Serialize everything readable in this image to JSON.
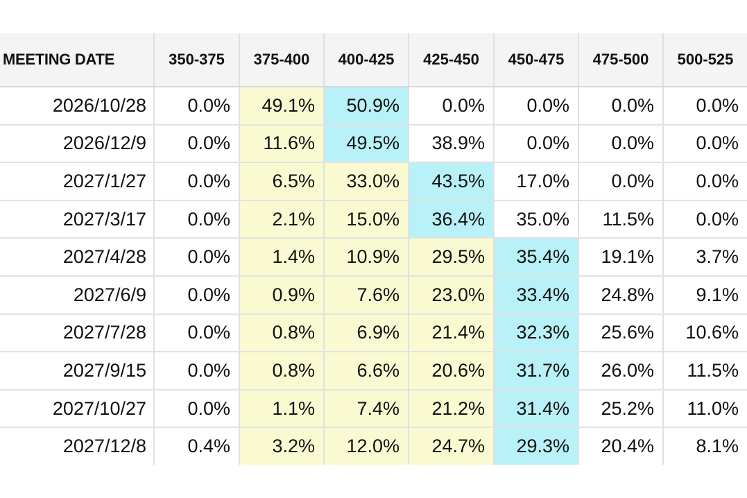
{
  "chart_data": {
    "type": "table",
    "title": "",
    "columns": [
      "MEETING DATE",
      "350-375",
      "375-400",
      "400-425",
      "425-450",
      "450-475",
      "475-500",
      "500-525"
    ],
    "rows": [
      [
        "2026/10/28",
        "0.0%",
        "49.1%",
        "50.9%",
        "0.0%",
        "0.0%",
        "0.0%",
        "0.0%"
      ],
      [
        "2026/12/9",
        "0.0%",
        "11.6%",
        "49.5%",
        "38.9%",
        "0.0%",
        "0.0%",
        "0.0%"
      ],
      [
        "2027/1/27",
        "0.0%",
        "6.5%",
        "33.0%",
        "43.5%",
        "17.0%",
        "0.0%",
        "0.0%"
      ],
      [
        "2027/3/17",
        "0.0%",
        "2.1%",
        "15.0%",
        "36.4%",
        "35.0%",
        "11.5%",
        "0.0%"
      ],
      [
        "2027/4/28",
        "0.0%",
        "1.4%",
        "10.9%",
        "29.5%",
        "35.4%",
        "19.1%",
        "3.7%"
      ],
      [
        "2027/6/9",
        "0.0%",
        "0.9%",
        "7.6%",
        "23.0%",
        "33.4%",
        "24.8%",
        "9.1%"
      ],
      [
        "2027/7/28",
        "0.0%",
        "0.8%",
        "6.9%",
        "21.4%",
        "32.3%",
        "25.6%",
        "10.6%"
      ],
      [
        "2027/9/15",
        "0.0%",
        "0.8%",
        "6.6%",
        "20.6%",
        "31.7%",
        "26.0%",
        "11.5%"
      ],
      [
        "2027/10/27",
        "0.0%",
        "1.1%",
        "7.4%",
        "21.2%",
        "31.4%",
        "25.2%",
        "11.0%"
      ],
      [
        "2027/12/8",
        "0.4%",
        "3.2%",
        "12.0%",
        "24.7%",
        "29.3%",
        "20.4%",
        "8.1%"
      ]
    ],
    "highlight_column_per_row": [
      3,
      3,
      4,
      4,
      5,
      5,
      5,
      5,
      5,
      5
    ],
    "highlight_colors": {
      "row_max": "#b8f1f7",
      "below_max": "#fafad2"
    },
    "header_background": "#f4f4f4",
    "grid": true
  }
}
